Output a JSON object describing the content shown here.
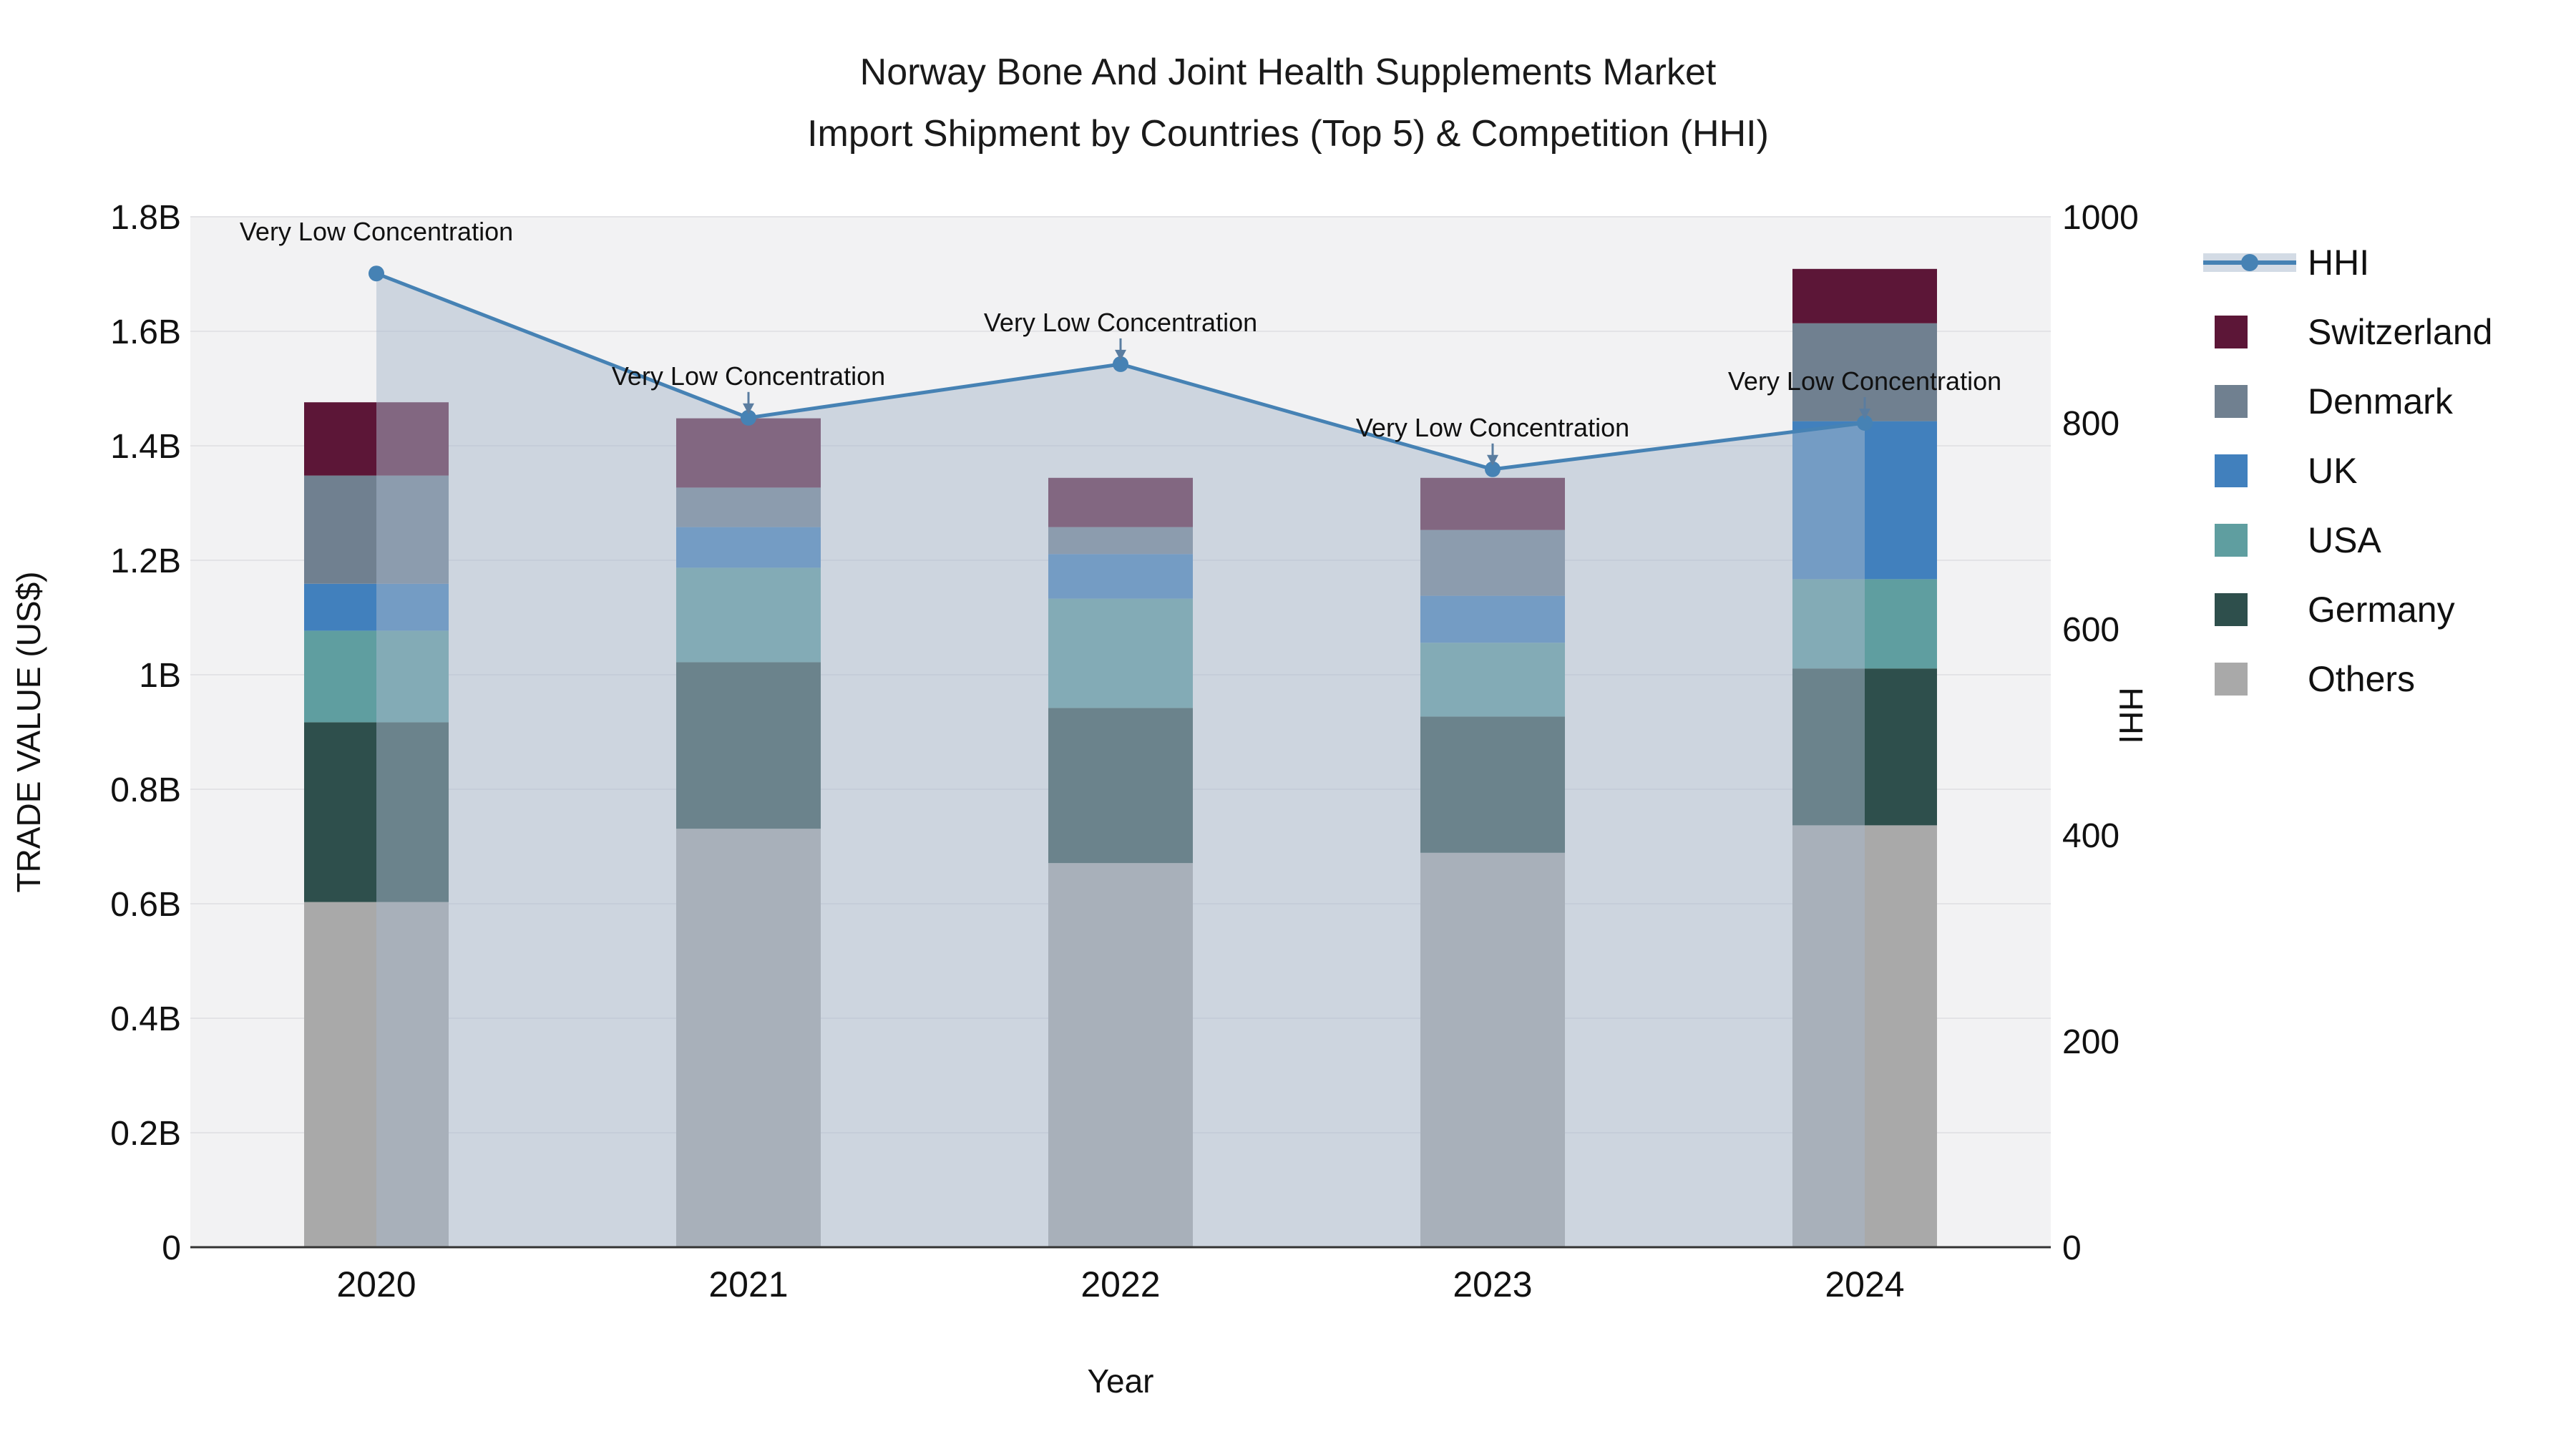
{
  "title": {
    "line1": "Norway Bone And Joint Health Supplements Market",
    "line2": "Import Shipment by Countries (Top 5) & Competition (HHI)"
  },
  "axes": {
    "x_label": "Year",
    "y_left_label": "TRADE VALUE (US$)",
    "y_right_label": "HHI",
    "y_left_ticks": [
      "0",
      "0.2B",
      "0.4B",
      "0.6B",
      "0.8B",
      "1B",
      "1.2B",
      "1.4B",
      "1.6B",
      "1.8B"
    ],
    "y_left_tick_values": [
      0,
      0.2,
      0.4,
      0.6,
      0.8,
      1.0,
      1.2,
      1.4,
      1.6,
      1.8
    ],
    "y_right_ticks": [
      "0",
      "200",
      "400",
      "600",
      "800",
      "1000"
    ],
    "y_right_tick_values": [
      0,
      200,
      400,
      600,
      800,
      1000
    ]
  },
  "chart_data": {
    "type": "combo: stacked bar (left axis) + line with area fill (right axis)",
    "categories": [
      "2020",
      "2021",
      "2022",
      "2023",
      "2024"
    ],
    "bar_unit": "billions US$",
    "ylim_left": [
      0,
      1.8
    ],
    "ylim_right": [
      0,
      1000
    ],
    "grid": "horizontal, every 0.2B",
    "stack_order_bottom_to_top": [
      "Others",
      "Germany",
      "USA",
      "UK",
      "Denmark",
      "Switzerland"
    ],
    "series": [
      {
        "name": "Others",
        "color": "#a9a9a9",
        "values": [
          0.603,
          0.731,
          0.671,
          0.689,
          0.737
        ]
      },
      {
        "name": "Germany",
        "color": "#2e4f4c",
        "values": [
          0.314,
          0.291,
          0.271,
          0.238,
          0.274
        ]
      },
      {
        "name": "USA",
        "color": "#5f9ea0",
        "values": [
          0.16,
          0.165,
          0.191,
          0.129,
          0.156
        ]
      },
      {
        "name": "UK",
        "color": "#4180bd",
        "values": [
          0.082,
          0.071,
          0.078,
          0.082,
          0.276
        ]
      },
      {
        "name": "Denmark",
        "color": "#708090",
        "values": [
          0.189,
          0.069,
          0.047,
          0.115,
          0.171
        ]
      },
      {
        "name": "Switzerland",
        "color": "#5c1637",
        "values": [
          0.128,
          0.121,
          0.086,
          0.091,
          0.095
        ]
      }
    ],
    "line_series": {
      "name": "HHI",
      "axis": "right",
      "color": "#4682b4",
      "area_fill": "rgba(168,184,204,0.5)",
      "values": [
        945,
        805,
        857,
        755,
        800
      ]
    },
    "annotations": {
      "text": "Very Low Concentration",
      "points": [
        {
          "category": "2020",
          "arrow": false
        },
        {
          "category": "2021",
          "arrow": true
        },
        {
          "category": "2022",
          "arrow": true
        },
        {
          "category": "2023",
          "arrow": true
        },
        {
          "category": "2024",
          "arrow": true
        }
      ]
    }
  },
  "legend": {
    "items": [
      {
        "label": "HHI",
        "type": "line",
        "color": "#4682b4"
      },
      {
        "label": "Switzerland",
        "type": "square",
        "color": "#5c1637"
      },
      {
        "label": "Denmark",
        "type": "square",
        "color": "#708090"
      },
      {
        "label": "UK",
        "type": "square",
        "color": "#4180bd"
      },
      {
        "label": "USA",
        "type": "square",
        "color": "#5f9ea0"
      },
      {
        "label": "Germany",
        "type": "square",
        "color": "#2e4f4c"
      },
      {
        "label": "Others",
        "type": "square",
        "color": "#a9a9a9"
      }
    ]
  },
  "colors": {
    "figure_background": "#ffffff",
    "plot_background": "#f2f2f3",
    "gridline": "#e3e3e6",
    "axis_line": "#333333",
    "tick_text": "#111111",
    "annotation_text": "#111111",
    "annotation_arrow": "#5a7da0"
  }
}
